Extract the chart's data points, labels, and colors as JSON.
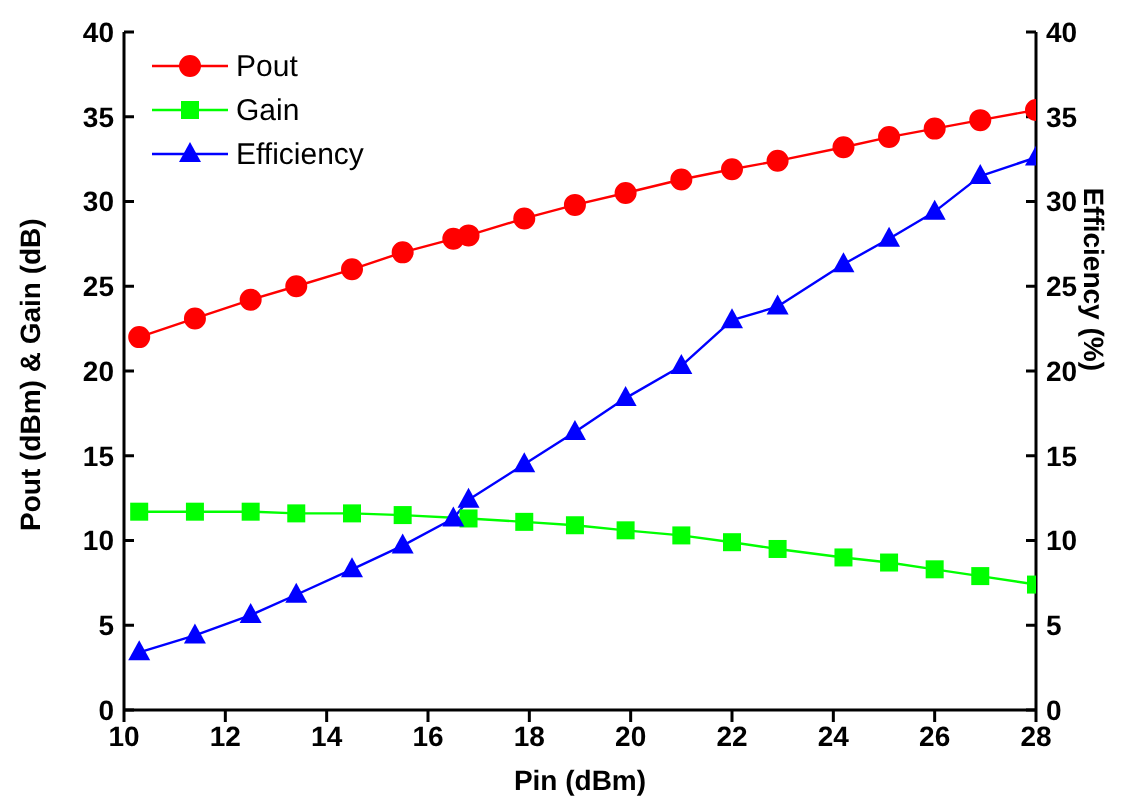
{
  "chart_data": {
    "type": "line",
    "xlabel": "Pin (dBm)",
    "ylabel": "Pout (dBm) & Gain (dB)",
    "y2label": "Efficiency (%)",
    "x": [
      10.3,
      11.4,
      12.5,
      13.4,
      14.5,
      15.5,
      16.5,
      16.8,
      17.9,
      18.9,
      19.9,
      21.0,
      22.0,
      22.9,
      24.2,
      25.1,
      26.0,
      26.9,
      28.0
    ],
    "series": [
      {
        "name": "Pout",
        "color": "#ff0000",
        "marker": "circle",
        "values": [
          22.0,
          23.1,
          24.2,
          25.0,
          26.0,
          27.0,
          27.8,
          28.0,
          29.0,
          29.8,
          30.5,
          31.3,
          31.9,
          32.4,
          33.2,
          33.8,
          34.3,
          34.8,
          35.4
        ]
      },
      {
        "name": "Gain",
        "color": "#00ff00",
        "marker": "square",
        "values": [
          11.7,
          11.7,
          11.7,
          11.6,
          11.6,
          11.5,
          null,
          11.3,
          11.1,
          10.9,
          10.6,
          10.3,
          9.9,
          9.5,
          9.0,
          8.7,
          8.3,
          7.9,
          7.4
        ]
      },
      {
        "name": "Efficiency",
        "color": "#0000ff",
        "marker": "triangle",
        "axis": "y2",
        "values": [
          3.4,
          4.4,
          5.6,
          6.8,
          8.3,
          9.7,
          11.3,
          12.4,
          14.5,
          16.4,
          18.4,
          20.3,
          23.0,
          23.8,
          26.3,
          27.8,
          29.4,
          31.5,
          32.6
        ]
      }
    ],
    "xlim": [
      10,
      28
    ],
    "xticks": [
      10,
      12,
      14,
      16,
      18,
      20,
      22,
      24,
      26,
      28
    ],
    "ylim": [
      0,
      40
    ],
    "yticks": [
      0,
      5,
      10,
      15,
      20,
      25,
      30,
      35,
      40
    ],
    "y2lim": [
      0,
      40
    ],
    "y2ticks": [
      0,
      5,
      10,
      15,
      20,
      25,
      30,
      35,
      40
    ],
    "grid": false,
    "legend": "top left"
  }
}
